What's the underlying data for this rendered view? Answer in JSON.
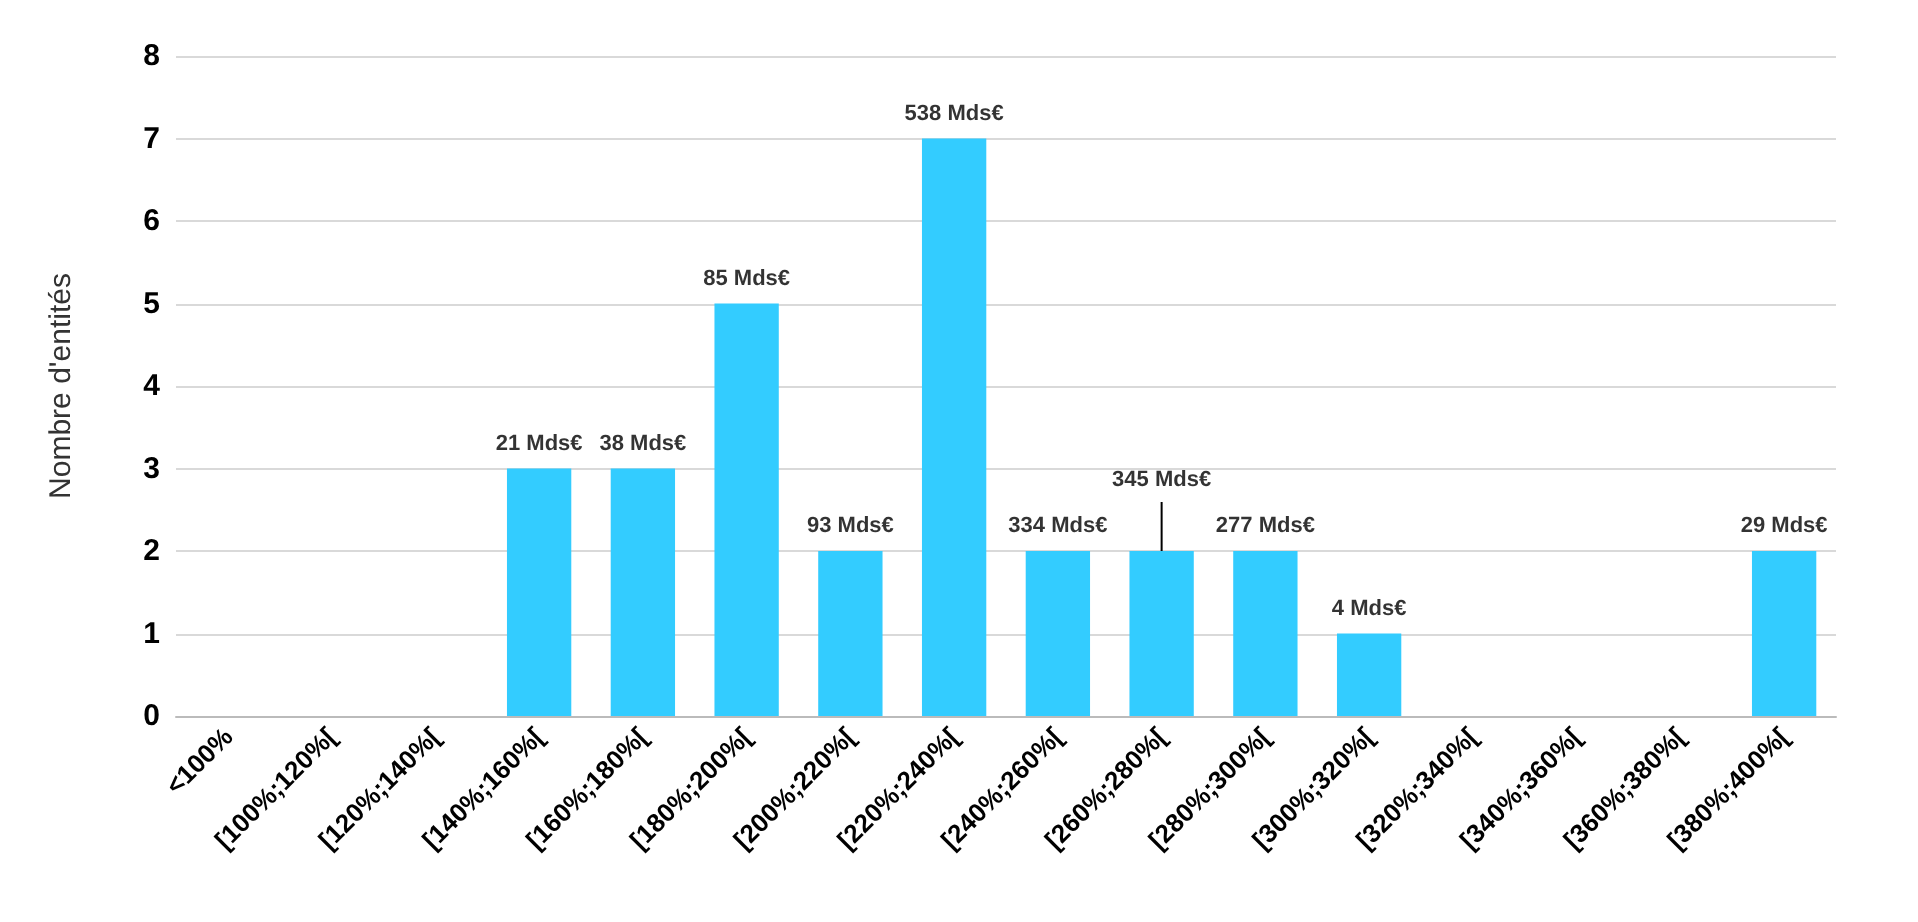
{
  "chart_data": {
    "type": "bar",
    "ylabel": "Nombre d'entités",
    "categories": [
      "<100%",
      "[100%;120%[",
      "[120%;140%[",
      "[140%;160%[",
      "[160%;180%[",
      "[180%;200%[",
      "[200%;220%[",
      "[220%;240%[",
      "[240%;260%[",
      "[260%;280%[",
      "[280%;300%[",
      "[300%;320%[",
      "[320%;340%[",
      "[340%;360%[",
      "[360%;380%[",
      "[380%;400%["
    ],
    "values": [
      0,
      0,
      0,
      3,
      3,
      5,
      2,
      7,
      2,
      2,
      2,
      1,
      0,
      0,
      0,
      2
    ],
    "annotations": [
      {
        "text": "21 Mds€",
        "x": "[140%;160%[",
        "y": 3
      },
      {
        "text": "38 Mds€",
        "x": "[160%;180%[",
        "y": 3
      },
      {
        "text": "85 Mds€",
        "x": "[180%;200%[",
        "y": 5
      },
      {
        "text": "93 Mds€",
        "x": "[200%;220%[",
        "y": 2
      },
      {
        "text": "538 Mds€",
        "x": "[220%;240%[",
        "y": 7
      },
      {
        "text": "334 Mds€",
        "x": "[240%;260%[",
        "y": 2
      },
      {
        "text": "345 Mds€",
        "x": "[260%;280%[",
        "y": 2
      },
      {
        "text": "277 Mds€",
        "x": "[280%;300%[",
        "y": 2
      },
      {
        "text": "4 Mds€",
        "x": "[300%;320%[",
        "y": 1
      },
      {
        "text": "29 Mds€",
        "x": "[380%;400%[",
        "y": 2
      }
    ],
    "color": "#33ccff",
    "ylim": [
      0,
      8
    ],
    "yticks": [
      0,
      1,
      2,
      3,
      4,
      5,
      6,
      7,
      8
    ],
    "grid": "y"
  }
}
